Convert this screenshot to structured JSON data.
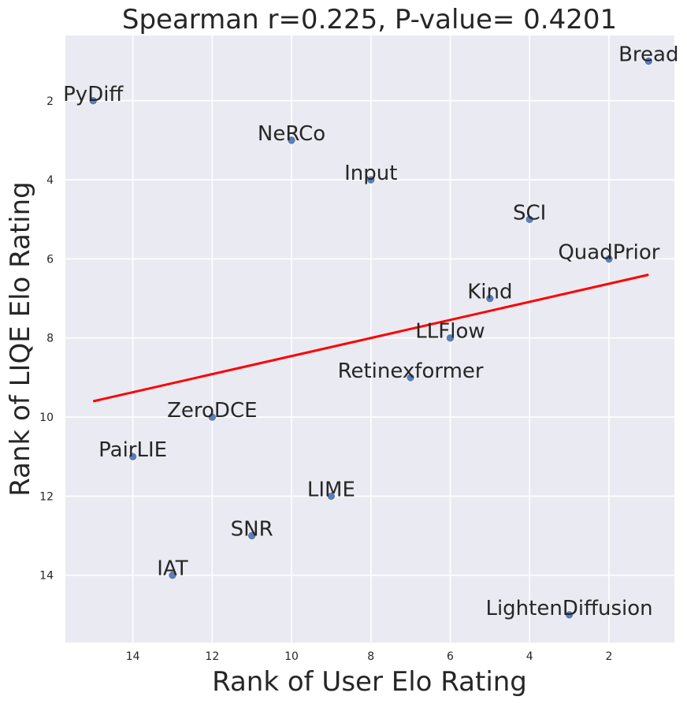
{
  "chart_data": {
    "type": "scatter",
    "title": "Spearman r=0.225, P-value= 0.4201",
    "xlabel": "Rank of User Elo Rating",
    "ylabel": "Rank of LIQE Elo Rating",
    "x_inverted": true,
    "y_inverted": true,
    "xlim": [
      15.7,
      0.35
    ],
    "ylim": [
      15.7,
      0.35
    ],
    "xticks": [
      14,
      12,
      10,
      8,
      6,
      4,
      2
    ],
    "yticks": [
      2,
      4,
      6,
      8,
      10,
      12,
      14
    ],
    "points": [
      {
        "label": "Bread",
        "x": 1,
        "y": 1
      },
      {
        "label": "PyDiff",
        "x": 15,
        "y": 2
      },
      {
        "label": "NeRCo",
        "x": 10,
        "y": 3
      },
      {
        "label": "Input",
        "x": 8,
        "y": 4
      },
      {
        "label": "SCI",
        "x": 4,
        "y": 5
      },
      {
        "label": "QuadPrior",
        "x": 2,
        "y": 6
      },
      {
        "label": "Kind",
        "x": 5,
        "y": 7
      },
      {
        "label": "LLFlow",
        "x": 6,
        "y": 8
      },
      {
        "label": "Retinexformer",
        "x": 7,
        "y": 9
      },
      {
        "label": "ZeroDCE",
        "x": 12,
        "y": 10
      },
      {
        "label": "PairLIE",
        "x": 14,
        "y": 11
      },
      {
        "label": "LIME",
        "x": 9,
        "y": 12
      },
      {
        "label": "SNR",
        "x": 11,
        "y": 13
      },
      {
        "label": "IAT",
        "x": 13,
        "y": 14
      },
      {
        "label": "LightenDiffusion",
        "x": 3,
        "y": 15
      }
    ],
    "fit_line": {
      "x": [
        15,
        1
      ],
      "y": [
        9.6,
        6.4
      ],
      "color": "#ff0000"
    },
    "point_color": "#4c72b0",
    "background_color": "#eaeaf2"
  }
}
